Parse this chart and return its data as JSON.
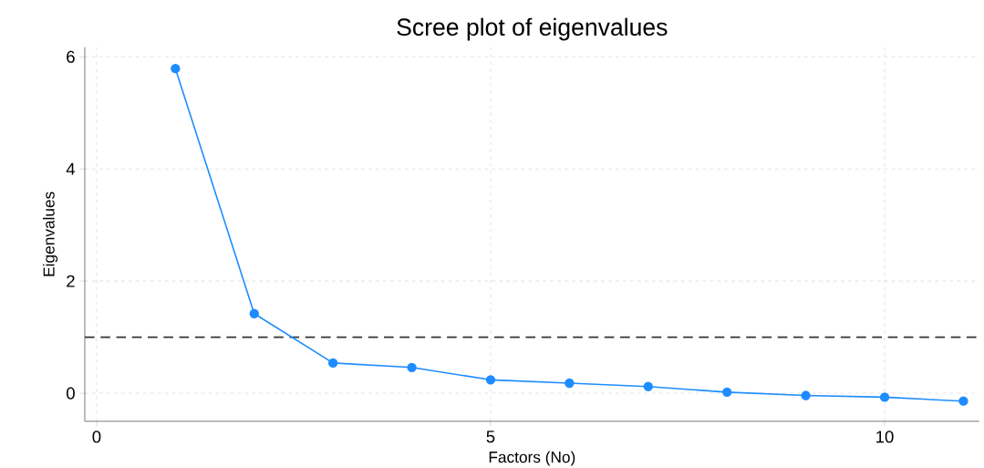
{
  "chart_data": {
    "type": "line",
    "title": "Scree plot of eigenvalues",
    "xlabel": "Factors (No)",
    "ylabel": "Eigenvalues",
    "x": [
      1,
      2,
      3,
      4,
      5,
      6,
      7,
      8,
      9,
      10,
      11
    ],
    "series": [
      {
        "color": "#1e8cff",
        "values": [
          5.79,
          1.42,
          0.54,
          0.46,
          0.24,
          0.18,
          0.12,
          0.02,
          -0.04,
          -0.07,
          -0.14
        ]
      }
    ],
    "xlim": [
      -0.15,
      11.2
    ],
    "ylim": [
      -0.5,
      6.17
    ],
    "xticks": [
      0,
      5,
      10
    ],
    "yticks": [
      0,
      2,
      4,
      6
    ],
    "ref_lines": [
      {
        "axis": "y",
        "value": 1,
        "color": "#333333",
        "line_style": "dashed"
      }
    ],
    "grid": true,
    "marker": "circle",
    "line_style": "solid"
  }
}
